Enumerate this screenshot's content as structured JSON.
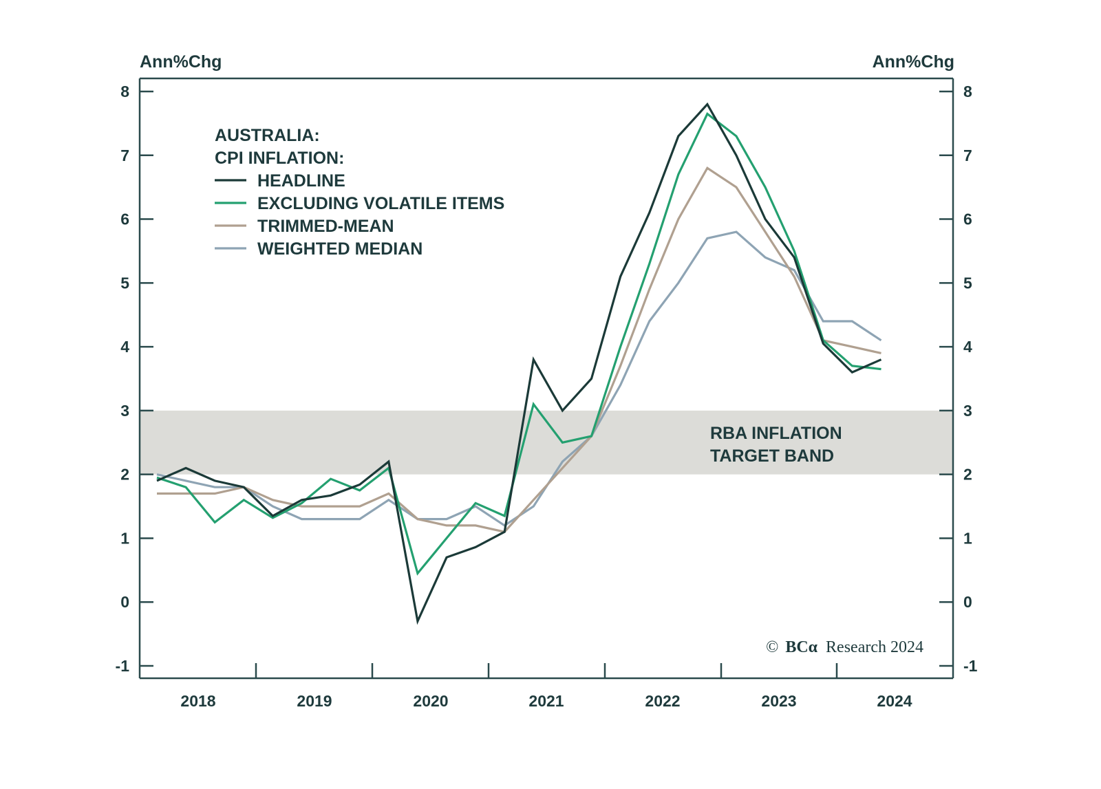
{
  "chart_data": {
    "type": "line",
    "title": "AUSTRALIA: CPI INFLATION:",
    "title_lines": [
      "AUSTRALIA:",
      "CPI INFLATION:"
    ],
    "ylabel_left": "Ann%Chg",
    "ylabel_right": "Ann%Chg",
    "ylim": [
      -1.2,
      8.2
    ],
    "yticks": [
      -1,
      0,
      1,
      2,
      3,
      4,
      5,
      6,
      7,
      8
    ],
    "ytick_labels": [
      "-1",
      "0",
      "1",
      "2",
      "3",
      "4",
      "5",
      "6",
      "7",
      "8"
    ],
    "x_year_labels": [
      "2018",
      "2019",
      "2020",
      "2021",
      "2022",
      "2023",
      "2024"
    ],
    "x_start": "2017Q4",
    "x": [
      "2017Q4",
      "2018Q1",
      "2018Q2",
      "2018Q3",
      "2018Q4",
      "2019Q1",
      "2019Q2",
      "2019Q3",
      "2019Q4",
      "2020Q1",
      "2020Q2",
      "2020Q3",
      "2020Q4",
      "2021Q1",
      "2021Q2",
      "2021Q3",
      "2021Q4",
      "2022Q1",
      "2022Q2",
      "2022Q3",
      "2022Q4",
      "2023Q1",
      "2023Q2",
      "2023Q3",
      "2023Q4",
      "2024Q1"
    ],
    "grid": false,
    "legend_position": "top-left",
    "series": [
      {
        "name": "HEADLINE",
        "color": "#1b3a38",
        "values": [
          1.9,
          2.1,
          1.9,
          1.8,
          1.35,
          1.6,
          1.67,
          1.84,
          2.2,
          -0.3,
          0.7,
          0.86,
          1.1,
          3.8,
          3.0,
          3.5,
          5.1,
          6.1,
          7.3,
          7.8,
          7.0,
          6.0,
          5.4,
          4.05,
          3.6,
          3.8
        ]
      },
      {
        "name": "EXCLUDING VOLATILE ITEMS",
        "color": "#24a070",
        "values": [
          1.95,
          1.8,
          1.25,
          1.6,
          1.32,
          1.55,
          1.93,
          1.75,
          2.1,
          0.45,
          1.0,
          1.55,
          1.35,
          3.1,
          2.5,
          2.6,
          4.0,
          5.3,
          6.7,
          7.65,
          7.3,
          6.5,
          5.5,
          4.1,
          3.7,
          3.65
        ]
      },
      {
        "name": "TRIMMED-MEAN",
        "color": "#b0a090",
        "values": [
          1.7,
          1.7,
          1.7,
          1.8,
          1.6,
          1.5,
          1.5,
          1.5,
          1.7,
          1.3,
          1.2,
          1.2,
          1.1,
          1.6,
          2.1,
          2.6,
          3.7,
          4.9,
          6.0,
          6.8,
          6.5,
          5.8,
          5.1,
          4.1,
          4.0,
          3.9
        ]
      },
      {
        "name": "WEIGHTED MEDIAN",
        "color": "#8ea4b4",
        "values": [
          2.0,
          1.9,
          1.8,
          1.8,
          1.5,
          1.3,
          1.3,
          1.3,
          1.6,
          1.3,
          1.3,
          1.5,
          1.2,
          1.5,
          2.2,
          2.6,
          3.4,
          4.4,
          5.0,
          5.7,
          5.8,
          5.4,
          5.2,
          4.4,
          4.4,
          4.1
        ]
      }
    ],
    "band": {
      "from": 2,
      "to": 3,
      "label_lines": [
        "RBA INFLATION",
        "TARGET BAND"
      ],
      "color": "#dcdcd8"
    },
    "annotations": [
      "© BCA Research 2024"
    ],
    "credit": {
      "symbol": "©",
      "brand": "BCα",
      "text": "Research 2024"
    }
  },
  "colors": {
    "axis": "#2a4a4c",
    "text": "#1e3a3c"
  }
}
